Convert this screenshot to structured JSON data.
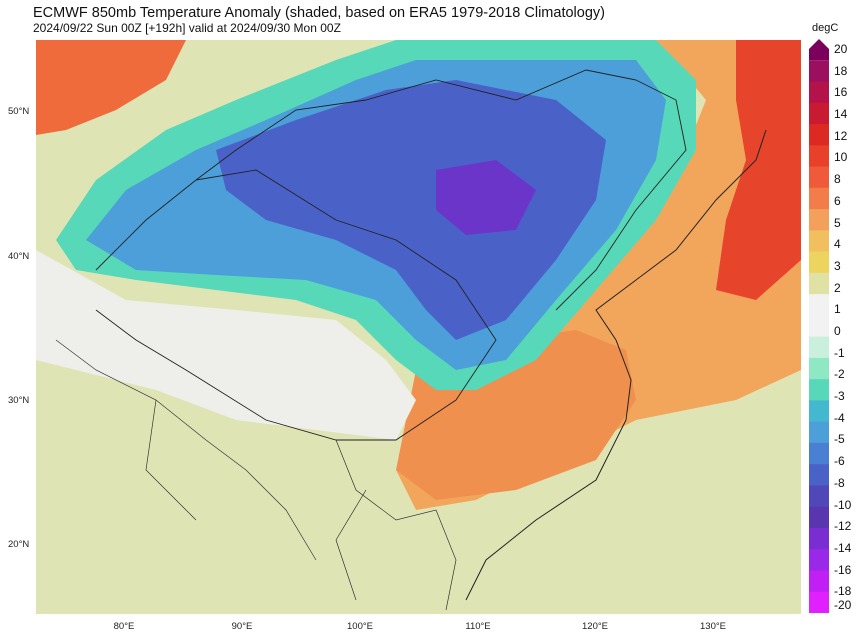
{
  "header": {
    "title": "ECMWF 850mb Temperature Anomaly (shaded, based on ERA5 1979-2018 Climatology)",
    "subtitle": "2024/09/22 Sun 00Z [+192h] valid at 2024/09/30 Mon 00Z"
  },
  "axes": {
    "lat_labels": [
      "50°N",
      "40°N",
      "30°N",
      "20°N"
    ],
    "lon_labels": [
      "80°E",
      "90°E",
      "100°E",
      "110°E",
      "120°E",
      "130°E"
    ]
  },
  "colorbar": {
    "unit": "degC",
    "labels": [
      "20",
      "18",
      "16",
      "14",
      "12",
      "10",
      "8",
      "6",
      "5",
      "4",
      "3",
      "2",
      "1",
      "0",
      "-1",
      "-2",
      "-3",
      "-4",
      "-5",
      "-6",
      "-8",
      "-10",
      "-12",
      "-14",
      "-16",
      "-18",
      "-20"
    ],
    "colors": [
      "#7a005c",
      "#9b0f5e",
      "#b3124a",
      "#c81a30",
      "#dc2a22",
      "#e8402a",
      "#ef5b3a",
      "#f27d4a",
      "#f3a05c",
      "#f1bf5e",
      "#ecd45f",
      "#dfe2a3",
      "#f2f2f2",
      "#f2f2f2",
      "#c9f0dc",
      "#8ee8c3",
      "#57d8b8",
      "#43b8cf",
      "#4c9fd9",
      "#4a80d4",
      "#4a62c8",
      "#5048b8",
      "#5a35b0",
      "#7a2dd0",
      "#9a28e8",
      "#c020f4",
      "#e020ff"
    ]
  }
}
